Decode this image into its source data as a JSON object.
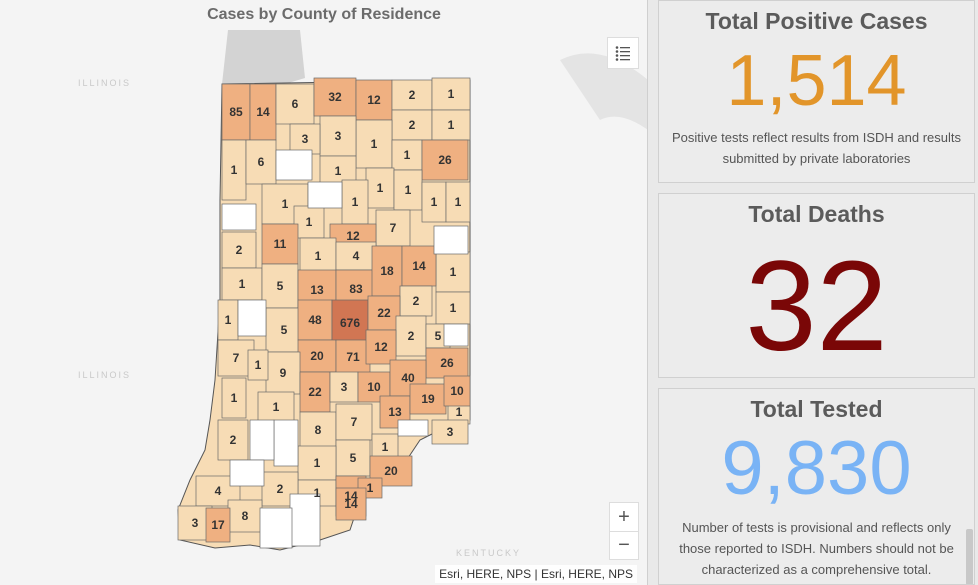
{
  "map": {
    "title": "Cases by County of Residence",
    "attribution": "Esri, HERE, NPS | Esri, HERE, NPS",
    "zoom_in": "+",
    "zoom_out": "−",
    "bg_labels": [
      "ILLINOIS",
      "ILLINOIS",
      "KENTUCKY"
    ],
    "county_counts": [
      "85",
      "14",
      "6",
      "32",
      "12",
      "2",
      "1",
      "2",
      "1",
      "1",
      "3",
      "3",
      "1",
      "26",
      "1",
      "6",
      "1",
      "1",
      "1",
      "1",
      "1",
      "1",
      "1",
      "1",
      "7",
      "12",
      "2",
      "11",
      "1",
      "4",
      "1",
      "1",
      "5",
      "13",
      "83",
      "18",
      "14",
      "2",
      "1",
      "5",
      "48",
      "676",
      "22",
      "2",
      "5",
      "1",
      "7",
      "20",
      "71",
      "12",
      "26",
      "9",
      "1",
      "1",
      "22",
      "3",
      "10",
      "40",
      "1",
      "1",
      "13",
      "19",
      "10",
      "8",
      "7",
      "1",
      "3",
      "2",
      "5",
      "1",
      "20",
      "1",
      "2",
      "14",
      "4",
      "1",
      "8",
      "14",
      "3",
      "17"
    ],
    "colors": {
      "none": "#ffffff",
      "low": "#f7dcb5",
      "mid": "#efb081",
      "high": "#e39a73",
      "top": "#d17653",
      "water": "#d3d3d3"
    }
  },
  "stats": {
    "positive": {
      "title": "Total Positive Cases",
      "value": "1,514",
      "desc": "Positive tests reflect results from ISDH and results submitted by private laboratories",
      "color": "#e2952a"
    },
    "deaths": {
      "title": "Total Deaths",
      "value": "32",
      "color": "#7a0707"
    },
    "tested": {
      "title": "Total Tested",
      "value": "9,830",
      "desc": "Number of tests is provisional and reflects only those reported to ISDH. Numbers should not be characterized as a comprehensive total.",
      "color": "#79b3f5"
    }
  }
}
